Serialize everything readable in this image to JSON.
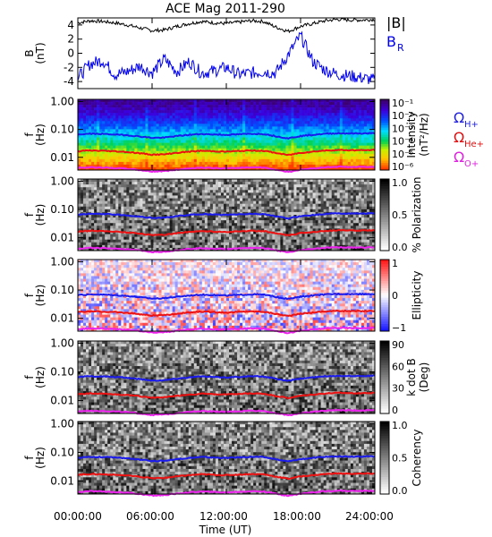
{
  "chart_data": {
    "type": "heatmap",
    "title": "ACE Mag 2011-290",
    "xlabel": "Time (UT)",
    "x_ticks": [
      "00:00:00",
      "06:00:00",
      "12:00:00",
      "18:00:00",
      "24:00:00"
    ],
    "x_range_hours": [
      0,
      24
    ],
    "panels": [
      {
        "kind": "line",
        "ylabel": [
          "B",
          "(nT)"
        ],
        "ylim": [
          -5,
          5
        ],
        "y_ticks": [
          "4",
          "2",
          "0",
          "-2",
          "-4"
        ],
        "legend": [
          "|B|",
          "B"
        ],
        "legend_sub": [
          "",
          "R"
        ],
        "series": [
          {
            "name": "|B|",
            "color": "#000000",
            "x": [
              0,
              1,
              2,
              3,
              4,
              5,
              6,
              7,
              8,
              9,
              10,
              11,
              12,
              13,
              14,
              15,
              16,
              17,
              18,
              19,
              20,
              21,
              22,
              23,
              24
            ],
            "values": [
              4.3,
              4.6,
              4.5,
              4.3,
              4.0,
              3.6,
              3.2,
              3.3,
              3.8,
              4.2,
              4.5,
              4.3,
              4.2,
              4.4,
              4.6,
              4.5,
              3.7,
              3.1,
              3.8,
              4.2,
              4.6,
              4.8,
              4.7,
              4.7,
              4.8
            ]
          },
          {
            "name": "B",
            "color": "#0000ee",
            "x": [
              0,
              1,
              2,
              3,
              4,
              5,
              6,
              7,
              8,
              9,
              10,
              11,
              12,
              13,
              14,
              15,
              16,
              17,
              18,
              19,
              20,
              21,
              22,
              23,
              24
            ],
            "values": [
              -3.5,
              -1.5,
              -1.0,
              -3.0,
              -2.6,
              -1.8,
              -2.8,
              -0.8,
              -2.6,
              -1.2,
              -2.8,
              -2.5,
              -2.0,
              -3.0,
              -2.8,
              -2.6,
              -2.8,
              -0.2,
              2.5,
              -1.2,
              -2.4,
              -3.0,
              -3.2,
              -3.5,
              -3.8
            ]
          }
        ]
      },
      {
        "kind": "spectrogram",
        "map": "intensity",
        "ylabel": [
          "f",
          "(Hz)"
        ],
        "y_ticks": [
          "1.00",
          "0.10",
          "0.01"
        ],
        "ylim_hz": [
          0.0035,
          1.2
        ],
        "y_scale": "log",
        "cbar_ticks": [
          "10⁻¹",
          "10⁻²",
          "10⁻³",
          "10⁻⁴",
          "10⁻⁵",
          "10⁻⁶"
        ],
        "cbar_label": [
          "Intensity",
          "(nT²/Hz)"
        ],
        "legend": [
          "Ω",
          "Ω",
          "Ω"
        ],
        "legend_sub": [
          "H+",
          "He+",
          "O+"
        ],
        "legend_colors": [
          "#2222dd",
          "#dd1111",
          "#dd22dd"
        ]
      },
      {
        "kind": "spectrogram",
        "map": "gray",
        "ylabel": [
          "f",
          "(Hz)"
        ],
        "y_ticks": [
          "1.00",
          "0.10",
          "0.01"
        ],
        "cbar_ticks": [
          "1.0",
          "0.5",
          "0.0"
        ],
        "cbar_label": [
          "% Polarization"
        ]
      },
      {
        "kind": "spectrogram",
        "map": "bwr",
        "ylabel": [
          "f",
          "(Hz)"
        ],
        "y_ticks": [
          "1.00",
          "0.10",
          "0.01"
        ],
        "cbar_ticks": [
          "1",
          "0",
          "−1"
        ],
        "cbar_label": [
          "Ellipticity"
        ]
      },
      {
        "kind": "spectrogram",
        "map": "gray",
        "ylabel": [
          "f",
          "(Hz)"
        ],
        "y_ticks": [
          "1.00",
          "0.10",
          "0.01"
        ],
        "cbar_ticks": [
          "90",
          "60",
          "30",
          "0"
        ],
        "cbar_label": [
          "k dot B",
          "(Deg)"
        ]
      },
      {
        "kind": "spectrogram",
        "map": "gray",
        "ylabel": [
          "f",
          "(Hz)"
        ],
        "y_ticks": [
          "1.00",
          "0.10",
          "0.01"
        ],
        "cbar_ticks": [
          "1.0",
          "0.5",
          "0.0"
        ],
        "cbar_label": [
          "Coherency"
        ]
      }
    ],
    "gyrofrequency_lines": [
      {
        "name": "H+",
        "color": "#1a1aee",
        "x": [
          0,
          1,
          2,
          3,
          4,
          5,
          6,
          7,
          8,
          9,
          10,
          11,
          12,
          13,
          14,
          15,
          16,
          17,
          18,
          19,
          20,
          21,
          22,
          23,
          24
        ],
        "values_hz": [
          0.066,
          0.07,
          0.069,
          0.066,
          0.062,
          0.056,
          0.05,
          0.051,
          0.058,
          0.064,
          0.069,
          0.066,
          0.064,
          0.067,
          0.07,
          0.069,
          0.057,
          0.048,
          0.058,
          0.064,
          0.07,
          0.073,
          0.072,
          0.072,
          0.073
        ]
      },
      {
        "name": "He+",
        "color": "#ee1111",
        "x": [
          0,
          1,
          2,
          3,
          4,
          5,
          6,
          7,
          8,
          9,
          10,
          11,
          12,
          13,
          14,
          15,
          16,
          17,
          18,
          19,
          20,
          21,
          22,
          23,
          24
        ],
        "values_hz": [
          0.0165,
          0.0175,
          0.0172,
          0.0165,
          0.0155,
          0.014,
          0.0125,
          0.0128,
          0.0145,
          0.016,
          0.0172,
          0.0165,
          0.016,
          0.0168,
          0.0175,
          0.0172,
          0.0143,
          0.012,
          0.0145,
          0.016,
          0.0175,
          0.0183,
          0.018,
          0.018,
          0.0183
        ]
      },
      {
        "name": "O+",
        "color": "#ee22ee",
        "x": [
          0,
          1,
          2,
          3,
          4,
          5,
          6,
          7,
          8,
          9,
          10,
          11,
          12,
          13,
          14,
          15,
          16,
          17,
          18,
          19,
          20,
          21,
          22,
          23,
          24
        ],
        "values_hz": [
          0.0041,
          0.0044,
          0.0043,
          0.0041,
          0.0039,
          0.0035,
          0.0031,
          0.0032,
          0.0036,
          0.004,
          0.0043,
          0.0041,
          0.004,
          0.0042,
          0.0044,
          0.0043,
          0.0036,
          0.003,
          0.0036,
          0.004,
          0.0044,
          0.0046,
          0.0045,
          0.0045,
          0.0046
        ]
      }
    ]
  }
}
